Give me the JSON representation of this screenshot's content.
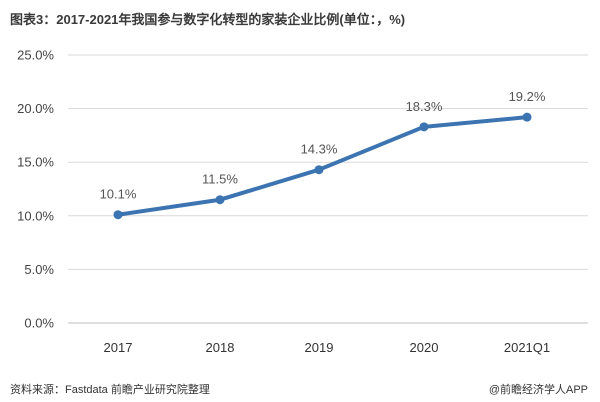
{
  "title": "图表3：2017-2021年我国参与数字化转型的家装企业比例(单位：，%)",
  "source": "资料来源：Fastdata 前瞻产业研究院整理",
  "brand": "@前瞻经济学人APP",
  "chart_data": {
    "type": "line",
    "categories": [
      "2017",
      "2018",
      "2019",
      "2020",
      "2021Q1"
    ],
    "series": [
      {
        "values": [
          10.1,
          11.5,
          14.3,
          18.3,
          19.2
        ],
        "labels": [
          "10.1%",
          "11.5%",
          "14.3%",
          "18.3%",
          "19.2%"
        ]
      }
    ],
    "y_ticks": [
      0,
      5,
      10,
      15,
      20,
      25
    ],
    "y_tick_labels": [
      "0.0%",
      "5.0%",
      "10.0%",
      "15.0%",
      "20.0%",
      "25.0%"
    ],
    "ylim": [
      0,
      25
    ],
    "grid": true,
    "line_color": "#3b74b0",
    "grid_color": "#d9d9d9"
  }
}
